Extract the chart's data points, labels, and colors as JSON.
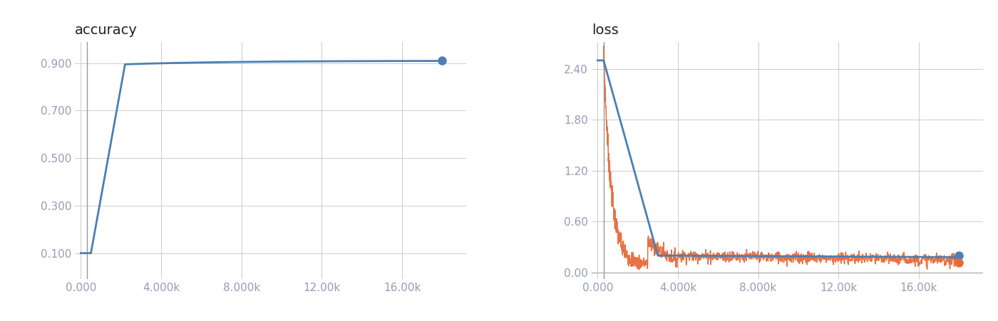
{
  "acc_title": "accuracy",
  "loss_title": "loss",
  "acc_eval_x": [
    18000
  ],
  "acc_eval_y": [
    0.91
  ],
  "loss_eval_end_x": [
    18000
  ],
  "loss_eval_end_y": [
    0.2
  ],
  "loss_train_end_y": [
    0.12
  ],
  "acc_yticks": [
    0.1,
    0.3,
    0.5,
    0.7,
    0.9
  ],
  "acc_ylim": [
    -0.01,
    0.99
  ],
  "loss_yticks": [
    0.0,
    0.6,
    1.2,
    1.8,
    2.4
  ],
  "loss_ylim": [
    -0.08,
    2.72
  ],
  "xticks": [
    0,
    4000,
    8000,
    12000,
    16000
  ],
  "xticklabels": [
    "0.000",
    "4.000k",
    "8.000k",
    "12.00k",
    "16.00k"
  ],
  "xlim": [
    -300,
    19200
  ],
  "vline_x": 300,
  "train_color": "#e8693a",
  "eval_color": "#4a7fb5",
  "vline_color": "#999999",
  "hline_color": "#aaaaaa",
  "grid_color": "#cccccc",
  "dot_size": 8,
  "bg_color": "#ffffff",
  "title_fontsize": 14,
  "tick_fontsize": 11,
  "tick_color": "#9999bb"
}
